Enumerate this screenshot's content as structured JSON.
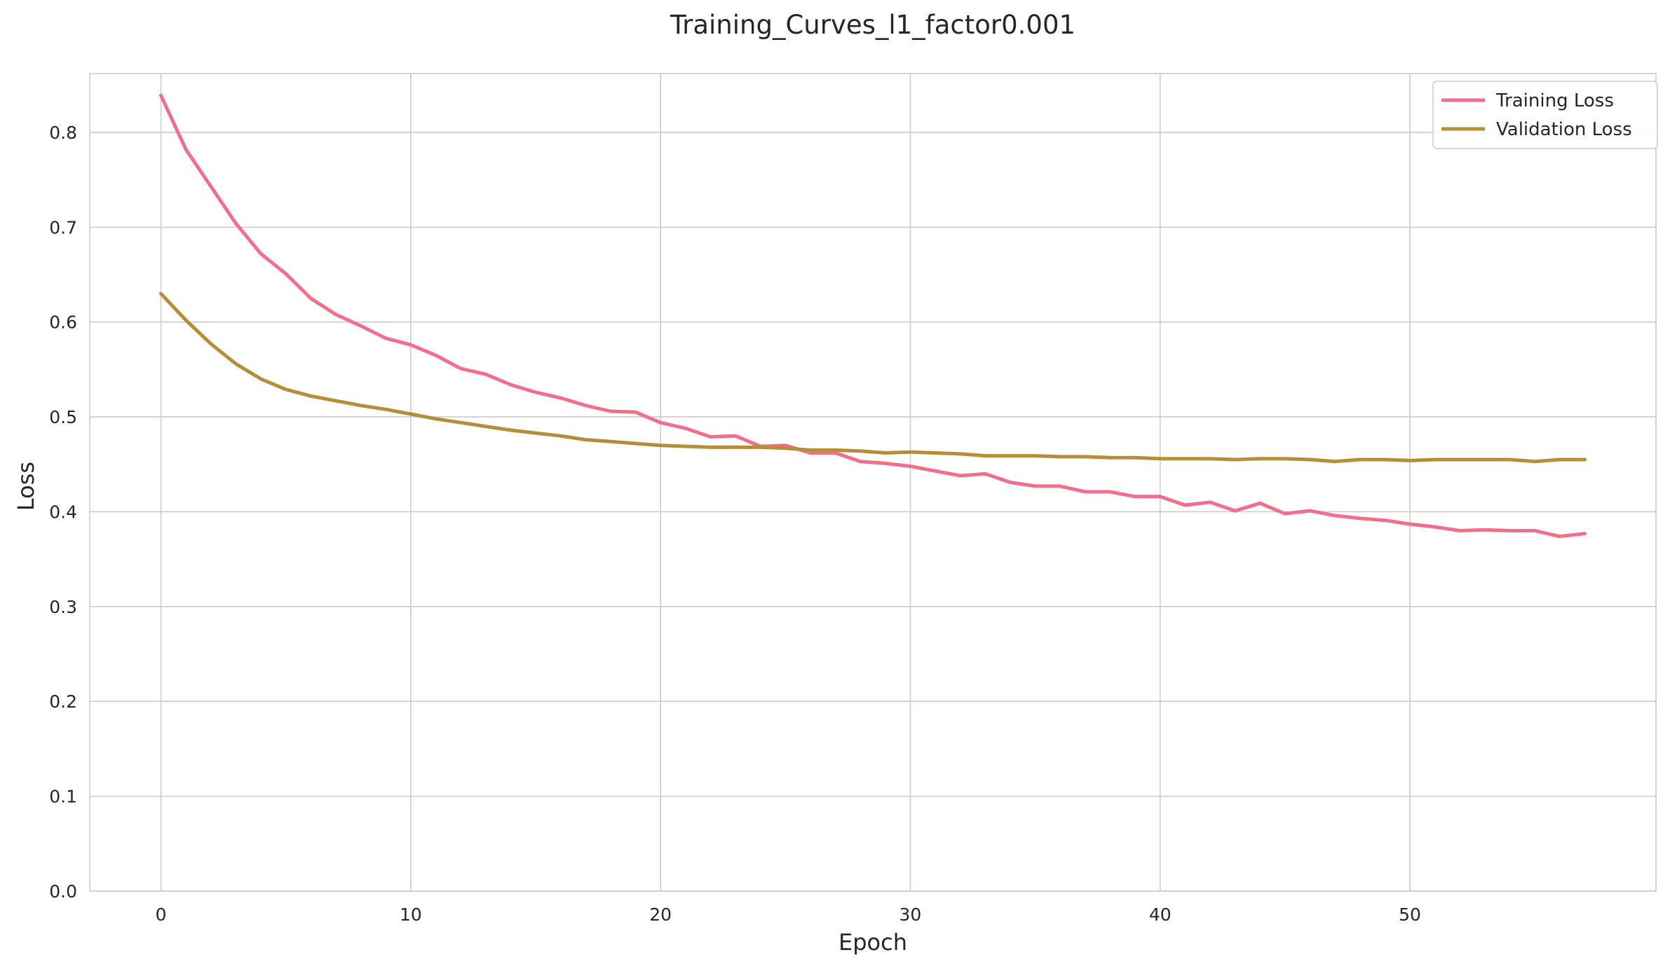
{
  "chart_data": {
    "type": "line",
    "title": "Training_Curves_l1_factor0.001",
    "xlabel": "Epoch",
    "ylabel": "Loss",
    "xlim": [
      -2.85,
      59.85
    ],
    "ylim": [
      0.0,
      0.862
    ],
    "xticks": [
      0,
      10,
      20,
      30,
      40,
      50
    ],
    "yticks": [
      0.0,
      0.1,
      0.2,
      0.3,
      0.4,
      0.5,
      0.6,
      0.7,
      0.8
    ],
    "ytick_labels": [
      "0.0",
      "0.1",
      "0.2",
      "0.3",
      "0.4",
      "0.5",
      "0.6",
      "0.7",
      "0.8"
    ],
    "grid": true,
    "legend_position": "top-right",
    "x": [
      0,
      1,
      2,
      3,
      4,
      5,
      6,
      7,
      8,
      9,
      10,
      11,
      12,
      13,
      14,
      15,
      16,
      17,
      18,
      19,
      20,
      21,
      22,
      23,
      24,
      25,
      26,
      27,
      28,
      29,
      30,
      31,
      32,
      33,
      34,
      35,
      36,
      37,
      38,
      39,
      40,
      41,
      42,
      43,
      44,
      45,
      46,
      47,
      48,
      49,
      50,
      51,
      52,
      53,
      54,
      55,
      56,
      57
    ],
    "series": [
      {
        "name": "Training Loss",
        "color": "#f0708b",
        "values": [
          0.839,
          0.782,
          0.743,
          0.704,
          0.672,
          0.651,
          0.625,
          0.608,
          0.596,
          0.583,
          0.576,
          0.565,
          0.551,
          0.545,
          0.534,
          0.526,
          0.52,
          0.512,
          0.506,
          0.505,
          0.494,
          0.488,
          0.479,
          0.48,
          0.469,
          0.47,
          0.462,
          0.462,
          0.453,
          0.451,
          0.448,
          0.443,
          0.438,
          0.44,
          0.431,
          0.427,
          0.427,
          0.421,
          0.421,
          0.416,
          0.416,
          0.407,
          0.41,
          0.401,
          0.409,
          0.398,
          0.401,
          0.396,
          0.393,
          0.391,
          0.387,
          0.384,
          0.38,
          0.381,
          0.38,
          0.38,
          0.374,
          0.377
        ]
      },
      {
        "name": "Validation Loss",
        "color": "#b48f38",
        "values": [
          0.63,
          0.602,
          0.577,
          0.556,
          0.54,
          0.529,
          0.522,
          0.517,
          0.512,
          0.508,
          0.503,
          0.498,
          0.494,
          0.49,
          0.486,
          0.483,
          0.48,
          0.476,
          0.474,
          0.472,
          0.47,
          0.469,
          0.468,
          0.468,
          0.468,
          0.467,
          0.465,
          0.465,
          0.464,
          0.462,
          0.463,
          0.462,
          0.461,
          0.459,
          0.459,
          0.459,
          0.458,
          0.458,
          0.457,
          0.457,
          0.456,
          0.456,
          0.456,
          0.455,
          0.456,
          0.456,
          0.455,
          0.453,
          0.455,
          0.455,
          0.454,
          0.455,
          0.455,
          0.455,
          0.455,
          0.453,
          0.455,
          0.455
        ]
      }
    ]
  }
}
